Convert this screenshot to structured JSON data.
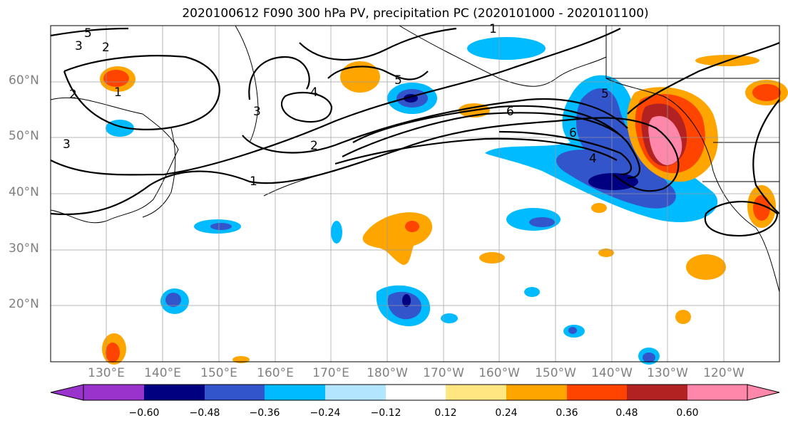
{
  "title": "2020100612 F090 300 hPa PV, precipitation PC (2020101000 - 2020101100)",
  "map": {
    "lat_labels": [
      "20°N",
      "30°N",
      "40°N",
      "50°N",
      "60°N"
    ],
    "lon_labels": [
      "130°E",
      "140°E",
      "150°E",
      "160°E",
      "170°E",
      "180°W",
      "170°W",
      "160°W",
      "150°W",
      "140°W",
      "130°W",
      "120°W"
    ],
    "contour_labels": [
      "1",
      "2",
      "3",
      "4",
      "5",
      "6",
      "1",
      "2",
      "3",
      "4",
      "5",
      "6",
      "2",
      "3",
      "1",
      "5"
    ]
  },
  "colorbar": {
    "tick_labels": [
      "−0.60",
      "−0.48",
      "−0.36",
      "−0.24",
      "−0.12",
      "0.12",
      "0.24",
      "0.36",
      "0.48",
      "0.60"
    ],
    "colors": [
      "#9933cc",
      "#000080",
      "#3355cc",
      "#00bbff",
      "#b3e5ff",
      "#ffffff",
      "#ffe680",
      "#ffa500",
      "#ff4400",
      "#b22222",
      "#ff88aa",
      "#ff88aa"
    ]
  }
}
